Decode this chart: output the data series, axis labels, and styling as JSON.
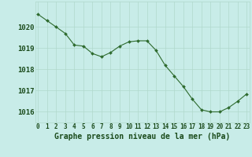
{
  "x": [
    0,
    1,
    2,
    3,
    4,
    5,
    6,
    7,
    8,
    9,
    10,
    11,
    12,
    13,
    14,
    15,
    16,
    17,
    18,
    19,
    20,
    21,
    22,
    23
  ],
  "y": [
    1020.6,
    1020.3,
    1020.0,
    1019.7,
    1019.15,
    1019.1,
    1018.75,
    1018.6,
    1018.8,
    1019.1,
    1019.3,
    1019.35,
    1019.35,
    1018.9,
    1018.2,
    1017.7,
    1017.2,
    1016.6,
    1016.1,
    1016.0,
    1016.0,
    1016.2,
    1016.5,
    1016.85
  ],
  "line_color": "#2d6a2d",
  "marker": "D",
  "marker_size": 2.0,
  "bg_color": "#c8ece8",
  "grid_color": "#b0d8cc",
  "xlabel": "Graphe pression niveau de la mer (hPa)",
  "xlabel_color": "#1a4a1a",
  "xlabel_fontsize": 7.0,
  "tick_color": "#1a4a1a",
  "ytick_fontsize": 6.5,
  "xtick_fontsize": 5.5,
  "ylim": [
    1015.5,
    1021.2
  ],
  "yticks": [
    1016,
    1017,
    1018,
    1019,
    1020
  ],
  "xticks": [
    0,
    1,
    2,
    3,
    4,
    5,
    6,
    7,
    8,
    9,
    10,
    11,
    12,
    13,
    14,
    15,
    16,
    17,
    18,
    19,
    20,
    21,
    22,
    23
  ],
  "xlim": [
    -0.3,
    23.3
  ]
}
